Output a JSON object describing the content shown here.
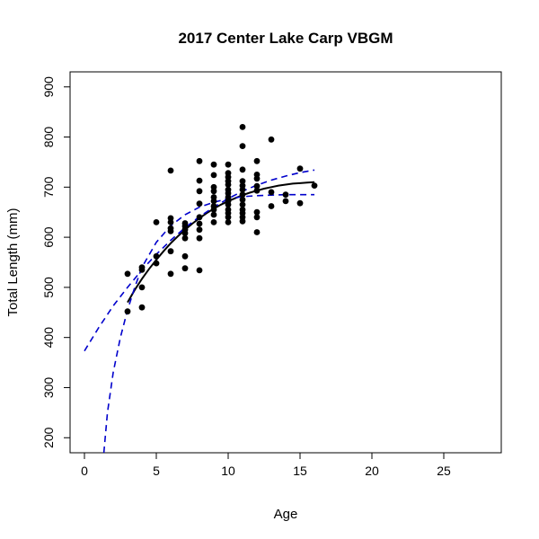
{
  "chart_data": {
    "type": "scatter",
    "title": "2017 Center Lake Carp VBGM",
    "xlabel": "Age",
    "ylabel": "Total Length (mm)",
    "xlim": [
      -1,
      29
    ],
    "ylim": [
      170,
      930
    ],
    "x_ticks": [
      0,
      5,
      10,
      15,
      20,
      25
    ],
    "y_ticks": [
      200,
      300,
      400,
      500,
      600,
      700,
      800,
      900
    ],
    "grid": false,
    "legend": "none",
    "points": [
      [
        3,
        527
      ],
      [
        3,
        452
      ],
      [
        4,
        540
      ],
      [
        4,
        535
      ],
      [
        4,
        500
      ],
      [
        4,
        460
      ],
      [
        5,
        630
      ],
      [
        5,
        562
      ],
      [
        5,
        548
      ],
      [
        6,
        733
      ],
      [
        6,
        638
      ],
      [
        6,
        630
      ],
      [
        6,
        618
      ],
      [
        6,
        612
      ],
      [
        6,
        572
      ],
      [
        6,
        527
      ],
      [
        7,
        628
      ],
      [
        7,
        622
      ],
      [
        7,
        615
      ],
      [
        7,
        608
      ],
      [
        7,
        598
      ],
      [
        7,
        562
      ],
      [
        7,
        538
      ],
      [
        8,
        752
      ],
      [
        8,
        713
      ],
      [
        8,
        692
      ],
      [
        8,
        667
      ],
      [
        8,
        640
      ],
      [
        8,
        627
      ],
      [
        8,
        615
      ],
      [
        8,
        598
      ],
      [
        8,
        534
      ],
      [
        9,
        745
      ],
      [
        9,
        724
      ],
      [
        9,
        700
      ],
      [
        9,
        692
      ],
      [
        9,
        680
      ],
      [
        9,
        672
      ],
      [
        9,
        662
      ],
      [
        9,
        655
      ],
      [
        9,
        645
      ],
      [
        9,
        630
      ],
      [
        10,
        745
      ],
      [
        10,
        728
      ],
      [
        10,
        720
      ],
      [
        10,
        712
      ],
      [
        10,
        705
      ],
      [
        10,
        695
      ],
      [
        10,
        688
      ],
      [
        10,
        680
      ],
      [
        10,
        672
      ],
      [
        10,
        665
      ],
      [
        10,
        655
      ],
      [
        10,
        648
      ],
      [
        10,
        640
      ],
      [
        10,
        630
      ],
      [
        11,
        820
      ],
      [
        11,
        782
      ],
      [
        11,
        735
      ],
      [
        11,
        712
      ],
      [
        11,
        703
      ],
      [
        11,
        695
      ],
      [
        11,
        685
      ],
      [
        11,
        675
      ],
      [
        11,
        665
      ],
      [
        11,
        655
      ],
      [
        11,
        648
      ],
      [
        11,
        640
      ],
      [
        11,
        632
      ],
      [
        12,
        752
      ],
      [
        12,
        725
      ],
      [
        12,
        717
      ],
      [
        12,
        702
      ],
      [
        12,
        693
      ],
      [
        12,
        650
      ],
      [
        12,
        640
      ],
      [
        12,
        610
      ],
      [
        13,
        795
      ],
      [
        13,
        690
      ],
      [
        13,
        662
      ],
      [
        14,
        685
      ],
      [
        14,
        672
      ],
      [
        15,
        737
      ],
      [
        15,
        668
      ],
      [
        16,
        703
      ]
    ],
    "series": [
      {
        "style": "solid",
        "color": "#000000",
        "x": [
          3,
          3.5,
          4,
          4.5,
          5,
          5.5,
          6,
          6.5,
          7,
          7.5,
          8,
          8.5,
          9,
          9.5,
          10,
          10.5,
          11,
          11.5,
          12,
          12.5,
          13,
          13.5,
          14,
          14.5,
          15,
          15.5,
          16
        ],
        "y": [
          470,
          495,
          517,
          537,
          555,
          572,
          588,
          602,
          615,
          627,
          638,
          648,
          657,
          665,
          672,
          678,
          684,
          689,
          693,
          697,
          700,
          703,
          705,
          707,
          708,
          709,
          710
        ]
      },
      {
        "style": "dashed",
        "color": "#0000cc",
        "x": [
          0,
          1,
          2,
          3,
          4,
          5,
          6,
          7,
          8,
          9,
          10,
          11,
          12,
          13,
          14,
          15,
          16
        ],
        "y": [
          373,
          420,
          463,
          500,
          535,
          566,
          594,
          619,
          641,
          660,
          677,
          692,
          704,
          714,
          722,
          729,
          734
        ]
      },
      {
        "style": "dashed",
        "color": "#0000cc",
        "x": [
          1.35,
          1.6,
          2,
          2.5,
          3,
          3.5,
          4,
          5,
          6,
          7,
          8,
          9,
          10,
          11,
          12,
          13,
          14,
          15,
          16
        ],
        "y": [
          170,
          250,
          330,
          400,
          455,
          500,
          540,
          590,
          623,
          645,
          660,
          670,
          677,
          681,
          683,
          684,
          685,
          685,
          685
        ]
      }
    ]
  }
}
